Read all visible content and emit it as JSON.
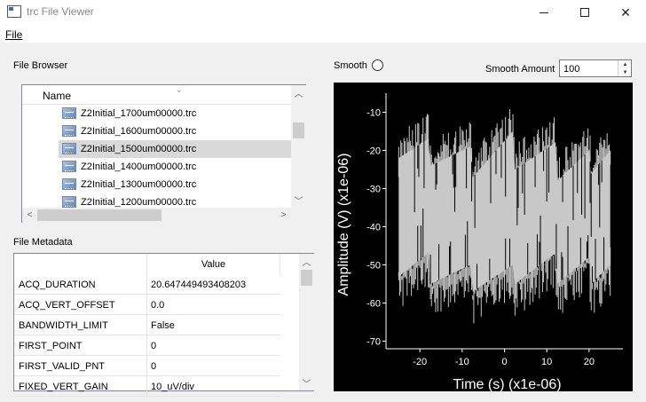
{
  "window": {
    "title": "trc File Viewer"
  },
  "menu": {
    "file_label": "File"
  },
  "browser": {
    "label": "File Browser",
    "column_header": "Name",
    "files": [
      "Z2Initial_1700um00000.trc",
      "Z2Initial_1600um00000.trc",
      "Z2Initial_1500um00000.trc",
      "Z2Initial_1400um00000.trc",
      "Z2Initial_1300um00000.trc",
      "Z2Initial_1200um00000.trc"
    ],
    "selected_file": "Z2Initial_1500um00000.trc"
  },
  "metadata": {
    "label": "File Metadata",
    "value_header": "Value",
    "rows": [
      {
        "key": "ACQ_DURATION",
        "value": "20.647449493408203"
      },
      {
        "key": "ACQ_VERT_OFFSET",
        "value": "0.0"
      },
      {
        "key": "BANDWIDTH_LIMIT",
        "value": "False"
      },
      {
        "key": "FIRST_POINT",
        "value": "0"
      },
      {
        "key": "FIRST_VALID_PNT",
        "value": "0"
      },
      {
        "key": "FIXED_VERT_GAIN",
        "value": "10_uV/div"
      }
    ]
  },
  "controls": {
    "smooth_label": "Smooth",
    "smooth_checked": false,
    "smooth_amount_label": "Smooth Amount",
    "smooth_amount_value": "100"
  },
  "colors": {
    "plot_background": "#000000",
    "trace": "#c8c8c8",
    "axis": "#ffffff"
  },
  "chart_data": {
    "type": "area",
    "xlabel": "Time (s) (x1e-06)",
    "ylabel": "Amplitude (V) (x1e-06)",
    "xlim": [
      -28,
      28
    ],
    "ylim": [
      -72,
      -5
    ],
    "xticks": [
      -20,
      -10,
      0,
      10,
      20
    ],
    "yticks": [
      -10,
      -20,
      -30,
      -40,
      -50,
      -60,
      -70
    ],
    "grid": false,
    "envelope": {
      "x": [
        -25,
        -18,
        -17.5,
        -8,
        -7.5,
        2,
        2.5,
        12,
        12.5,
        20,
        20.5,
        25
      ],
      "upper": [
        -22,
        -17,
        -24,
        -19,
        -27,
        -15,
        -25,
        -18,
        -28,
        -20,
        -26,
        -20
      ],
      "lower": [
        -53,
        -47,
        -55,
        -50,
        -57,
        -50,
        -55,
        -47,
        -55,
        -48,
        -55,
        -50
      ]
    }
  }
}
